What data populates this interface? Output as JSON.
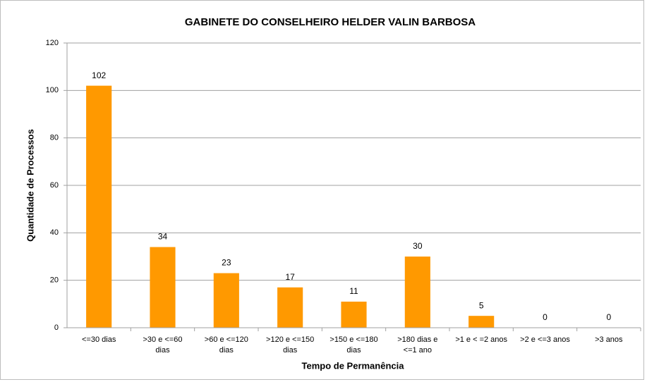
{
  "chart_data": {
    "type": "bar",
    "title": "GABINETE DO CONSELHEIRO HELDER VALIN BARBOSA",
    "x_label": "Tempo de Permanência",
    "y_label": "Quantidade de Processos",
    "categories": [
      "<=30 dias",
      ">30 e <=60 dias",
      ">60 e <=120 dias",
      ">120 e <=150 dias",
      ">150 e <=180 dias",
      ">180 dias e <=1 ano",
      ">1 e < =2 anos",
      ">2 e <=3 anos",
      ">3 anos"
    ],
    "values": [
      102,
      34,
      23,
      17,
      11,
      30,
      5,
      0,
      0
    ],
    "color": "#ff9900",
    "ylim": [
      0,
      120
    ],
    "yticks": [
      0,
      20,
      40,
      60,
      80,
      100,
      120
    ],
    "grid": true
  }
}
